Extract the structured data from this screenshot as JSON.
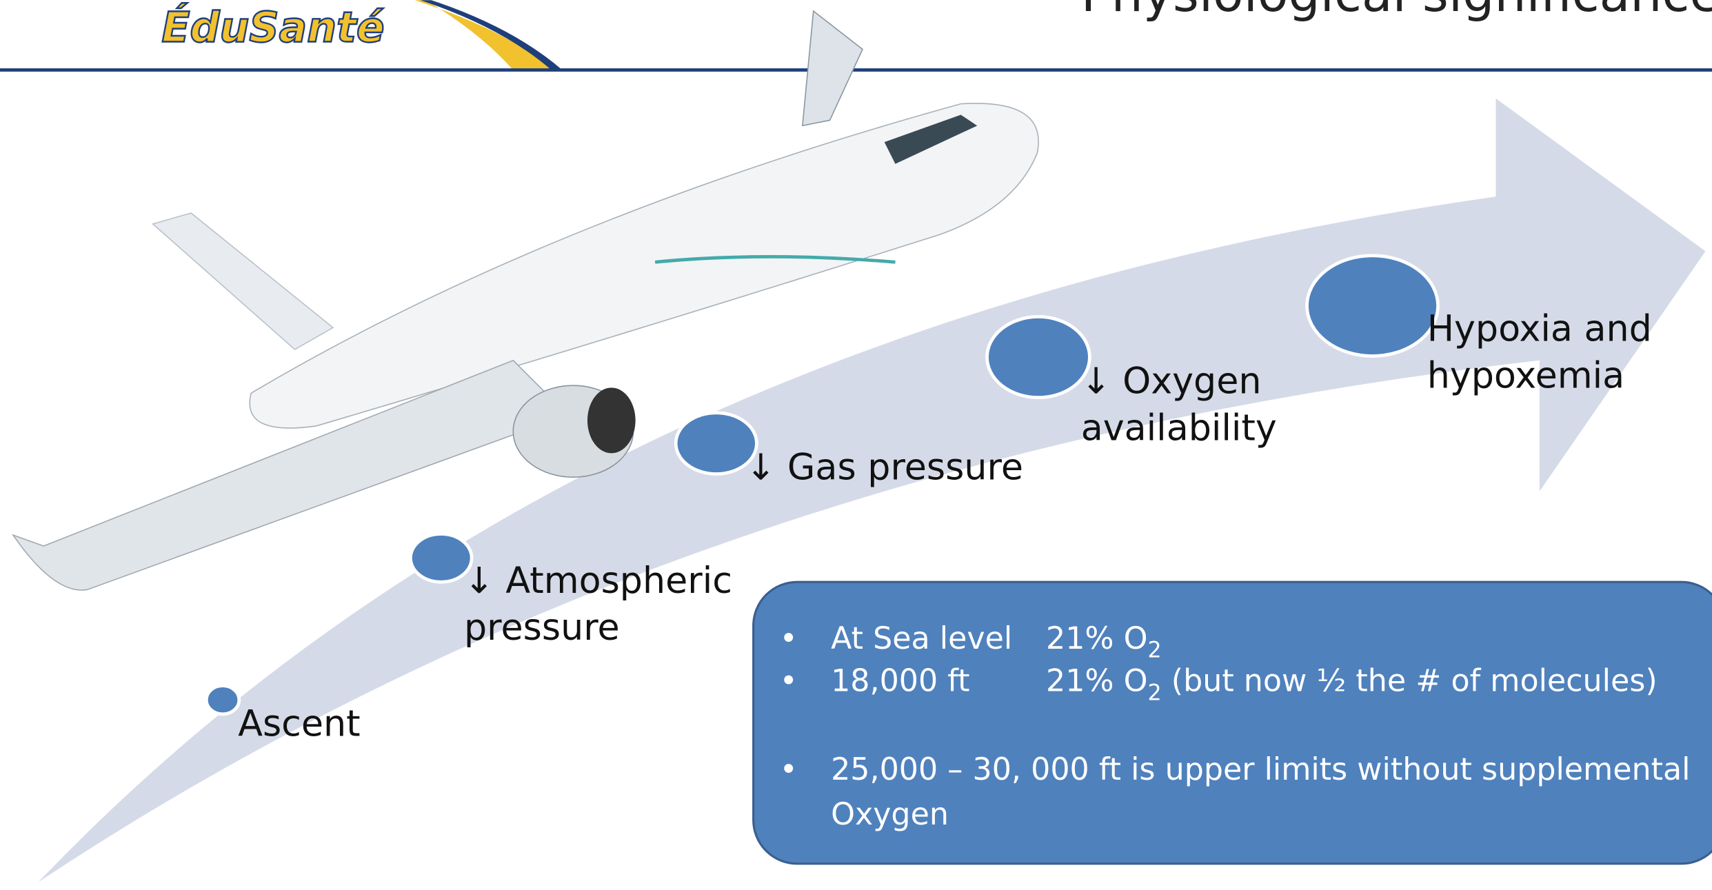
{
  "header": {
    "logo": "ÉduSanté",
    "title": "Physiological significance"
  },
  "steps": [
    {
      "lines": [
        "Ascent"
      ]
    },
    {
      "lines": [
        "↓ Atmospheric",
        "pressure"
      ]
    },
    {
      "lines": [
        "↓ Gas pressure"
      ]
    },
    {
      "lines": [
        "↓ Oxygen",
        "availability"
      ]
    },
    {
      "lines": [
        "Hypoxia and",
        "hypoxemia"
      ]
    }
  ],
  "box": {
    "bullet": "•",
    "rows": [
      {
        "label": "At Sea level",
        "value": "21% O",
        "sub": "2",
        "rest": ""
      },
      {
        "label": "18,000 ft",
        "value": "21% O",
        "sub": "2",
        "rest": " (but now ½ the # of molecules)"
      }
    ],
    "note": [
      "25,000 – 30, 000 ft is upper limits without supplemental",
      "Oxygen"
    ]
  }
}
